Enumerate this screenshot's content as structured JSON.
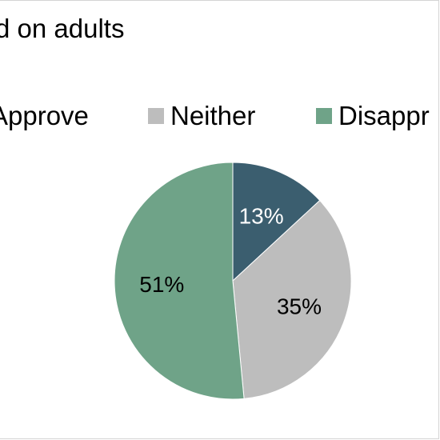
{
  "chart_data": {
    "type": "pie",
    "title": "d on adults",
    "categories": [
      "Approve",
      "Neither",
      "Disappr"
    ],
    "values": [
      13,
      35,
      51
    ],
    "labels": [
      "13%",
      "35%",
      "51%"
    ],
    "colors": [
      "#3b5e6f",
      "#bdbdbd",
      "#6fa388"
    ],
    "label_colors": [
      "#ffffff",
      "#000000",
      "#000000"
    ],
    "legend_position": "top"
  }
}
